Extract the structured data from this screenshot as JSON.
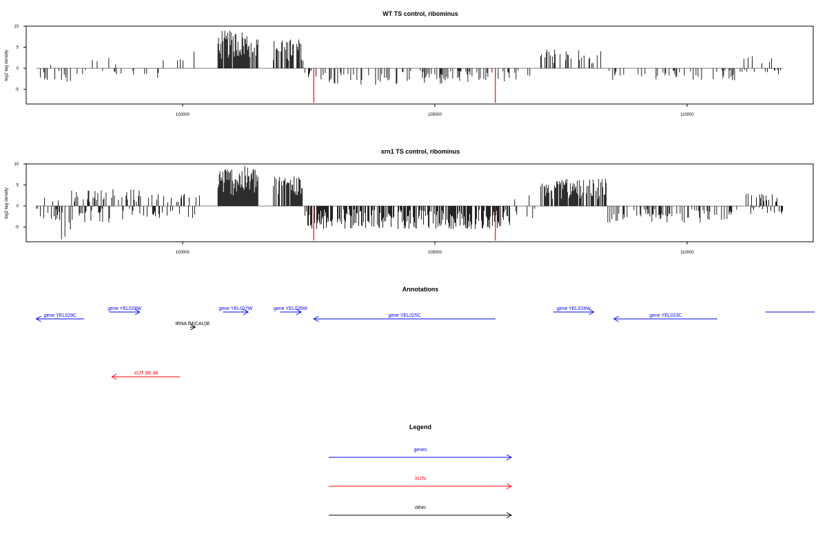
{
  "colors": {
    "genes": "#0000ff",
    "XUTs": "#ff0000",
    "other": "#000000",
    "cleavage_marker": "#ff0000",
    "baseline": "#808080"
  },
  "chart_data": [
    {
      "type": "bar",
      "title": "WT TS control, ribominus",
      "ylabel": "log2 tag density",
      "xlabel": "",
      "xlim": [
        96900,
        112500
      ],
      "ylim": [
        -8.5,
        10
      ],
      "x_ticks": [
        "100000",
        "105000",
        "110000"
      ],
      "y_ticks": [
        "10",
        "5",
        "0",
        "-5"
      ],
      "grid": false,
      "markers": [
        102600,
        106200
      ],
      "blocks": [
        {
          "from": 97100,
          "to": 97600,
          "min": -3,
          "max": 1.5,
          "density": 1
        },
        {
          "from": 97600,
          "to": 97800,
          "min": -6,
          "max": 0.5,
          "density": 1
        },
        {
          "from": 97800,
          "to": 98700,
          "min": -2,
          "max": 2.5,
          "density": 0.7
        },
        {
          "from": 98700,
          "to": 99800,
          "min": -3,
          "max": 2,
          "density": 0.5
        },
        {
          "from": 99900,
          "to": 100400,
          "min": 0,
          "max": 4,
          "density": 0.35
        },
        {
          "from": 100700,
          "to": 101500,
          "min": 0,
          "max": 9,
          "density": 3
        },
        {
          "from": 101800,
          "to": 102400,
          "min": 0,
          "max": 7,
          "density": 2.2
        },
        {
          "from": 102400,
          "to": 102650,
          "min": -2.5,
          "max": 0,
          "density": 1
        },
        {
          "from": 102650,
          "to": 106500,
          "min": -4,
          "max": 0,
          "density": 1
        },
        {
          "from": 106500,
          "to": 107000,
          "min": -3,
          "max": 0,
          "density": 0.3
        },
        {
          "from": 107100,
          "to": 108300,
          "min": 0,
          "max": 4.5,
          "density": 1.4
        },
        {
          "from": 108400,
          "to": 111100,
          "min": -3,
          "max": 0,
          "density": 0.6
        },
        {
          "from": 111100,
          "to": 111900,
          "min": -2,
          "max": 3,
          "density": 0.9
        }
      ]
    },
    {
      "type": "bar",
      "title": "xrn1 TS control, ribominus",
      "ylabel": "log2 tag density",
      "xlabel": "",
      "xlim": [
        96900,
        112500
      ],
      "ylim": [
        -8.5,
        10
      ],
      "x_ticks": [
        "100000",
        "105000",
        "110000"
      ],
      "y_ticks": [
        "10",
        "5",
        "0",
        "-5"
      ],
      "grid": false,
      "markers": [
        102600,
        106200
      ],
      "blocks": [
        {
          "from": 97100,
          "to": 97600,
          "min": -4,
          "max": 2.5,
          "density": 2
        },
        {
          "from": 97600,
          "to": 97800,
          "min": -8,
          "max": 1,
          "density": 1.5
        },
        {
          "from": 97800,
          "to": 99200,
          "min": -4,
          "max": 4,
          "density": 2
        },
        {
          "from": 99200,
          "to": 100400,
          "min": -3,
          "max": 3,
          "density": 1.2
        },
        {
          "from": 100700,
          "to": 101500,
          "min": 0,
          "max": 9.5,
          "density": 3.5
        },
        {
          "from": 101800,
          "to": 102400,
          "min": 0,
          "max": 7.5,
          "density": 2.2
        },
        {
          "from": 102400,
          "to": 106500,
          "min": -5.5,
          "max": 0,
          "density": 2.5
        },
        {
          "from": 106500,
          "to": 107000,
          "min": -3,
          "max": 3,
          "density": 0.8
        },
        {
          "from": 107100,
          "to": 108400,
          "min": 0,
          "max": 6.5,
          "density": 3
        },
        {
          "from": 108400,
          "to": 111000,
          "min": -4,
          "max": 0,
          "density": 1.3
        },
        {
          "from": 111100,
          "to": 111900,
          "min": -2,
          "max": 3,
          "density": 1.1
        }
      ]
    }
  ],
  "annotations": {
    "title": "Annotations",
    "items": [
      {
        "label": "gene YEL029C",
        "type": "genes",
        "start": 97100,
        "end": 98050,
        "strand": "-",
        "row": 0
      },
      {
        "label": "gene YEL028W",
        "type": "genes",
        "start": 98550,
        "end": 99150,
        "strand": "+",
        "row": -1
      },
      {
        "label": "tRNA fM(CAU)E",
        "type": "other",
        "start": 100150,
        "end": 100250,
        "strand": "+",
        "row": 1
      },
      {
        "label": "gene YEL027W",
        "type": "genes",
        "start": 100800,
        "end": 101300,
        "strand": "+",
        "row": -1
      },
      {
        "label": "gene YEL026W",
        "type": "genes",
        "start": 101930,
        "end": 102350,
        "strand": "+",
        "row": -1
      },
      {
        "label": "gene YEL025C",
        "type": "genes",
        "start": 102600,
        "end": 106200,
        "strand": "-",
        "row": 0
      },
      {
        "label": "gene YEL024W",
        "type": "genes",
        "start": 107350,
        "end": 108150,
        "strand": "+",
        "row": -1
      },
      {
        "label": "gene YEL023C",
        "type": "genes",
        "start": 108550,
        "end": 110600,
        "strand": "-",
        "row": 0
      },
      {
        "label": "",
        "type": "genes",
        "start": 111550,
        "end": 112600,
        "strand": "+",
        "row": -1
      },
      {
        "label": "XUT 5R-48",
        "type": "XUTs",
        "start": 98600,
        "end": 99950,
        "strand": "-",
        "row": 2
      }
    ]
  },
  "legend": {
    "title": "Legend",
    "entries": [
      {
        "label": "genes",
        "type": "genes"
      },
      {
        "label": "XUTs",
        "type": "XUTs"
      },
      {
        "label": "other",
        "type": "other"
      }
    ]
  }
}
